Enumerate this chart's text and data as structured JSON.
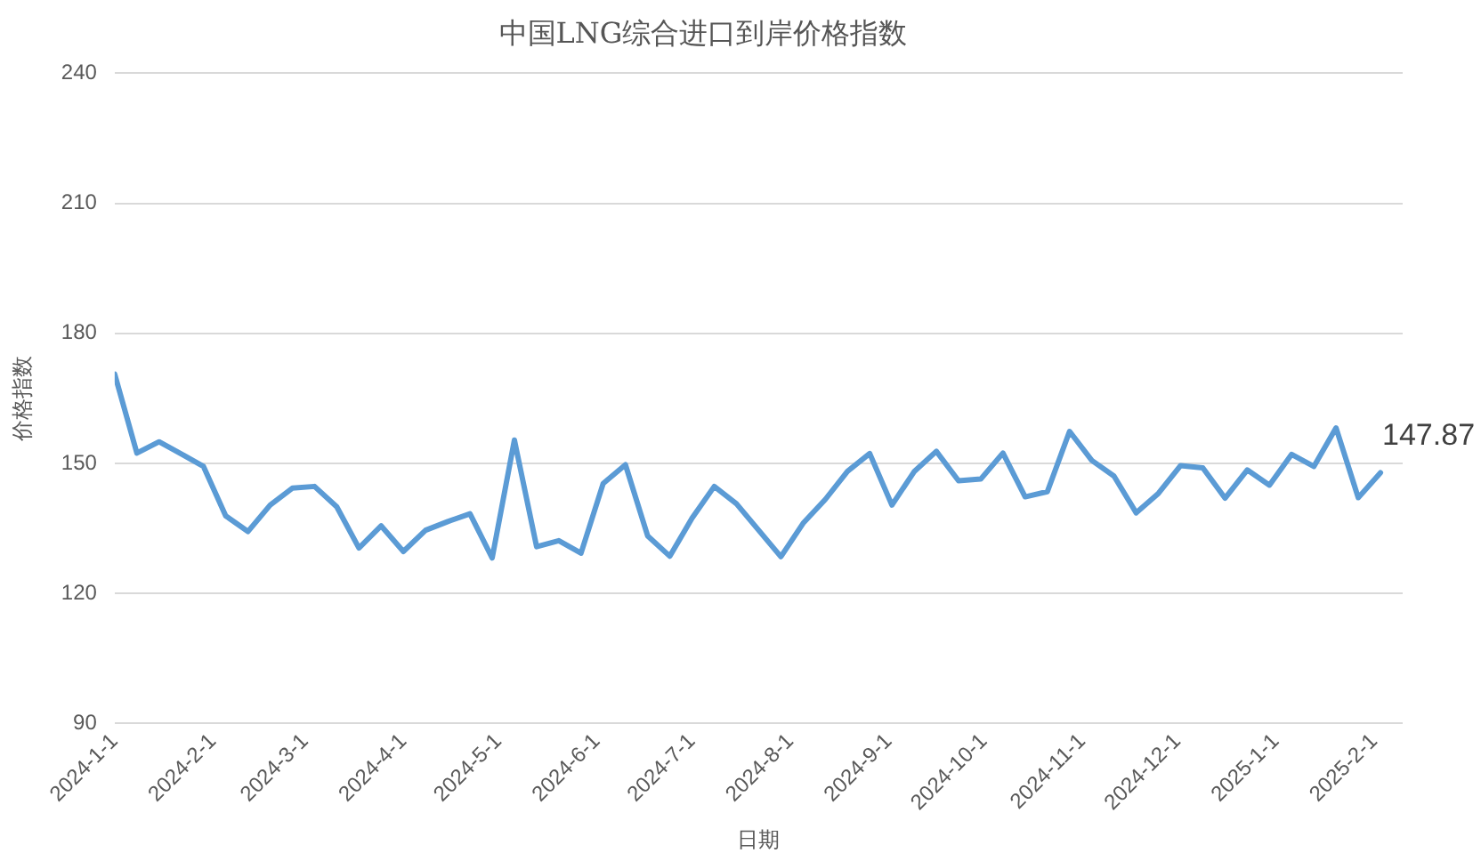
{
  "chart_data": {
    "type": "line",
    "title": "中国LNG综合进口到岸价格指数",
    "xlabel": "日期",
    "ylabel": "价格指数",
    "x": [
      "2024-01-01",
      "2024-01-08",
      "2024-01-15",
      "2024-01-22",
      "2024-01-29",
      "2024-02-05",
      "2024-02-12",
      "2024-02-19",
      "2024-02-26",
      "2024-03-04",
      "2024-03-11",
      "2024-03-18",
      "2024-03-25",
      "2024-04-01",
      "2024-04-08",
      "2024-04-15",
      "2024-04-22",
      "2024-04-29",
      "2024-05-06",
      "2024-05-13",
      "2024-05-20",
      "2024-05-27",
      "2024-06-03",
      "2024-06-10",
      "2024-06-17",
      "2024-06-24",
      "2024-07-01",
      "2024-07-08",
      "2024-07-15",
      "2024-07-22",
      "2024-07-29",
      "2024-08-05",
      "2024-08-12",
      "2024-08-19",
      "2024-08-26",
      "2024-09-02",
      "2024-09-09",
      "2024-09-16",
      "2024-09-23",
      "2024-09-30",
      "2024-10-07",
      "2024-10-14",
      "2024-10-21",
      "2024-10-28",
      "2024-11-04",
      "2024-11-11",
      "2024-11-18",
      "2024-11-25",
      "2024-12-02",
      "2024-12-09",
      "2024-12-16",
      "2024-12-23",
      "2024-12-30",
      "2025-01-06",
      "2025-01-13",
      "2025-01-20",
      "2025-01-27",
      "2025-02-03"
    ],
    "series": [
      {
        "color": "#5b9bd5",
        "values": [
          170.6,
          152.4,
          155,
          152.2,
          149.3,
          137.9,
          134.3,
          140.4,
          144.3,
          144.7,
          140,
          130.5,
          135.6,
          129.7,
          134.6,
          136.6,
          138.4,
          128.2,
          155.4,
          130.8,
          132.2,
          129.3,
          145.4,
          149.7,
          133.3,
          128.6,
          137.4,
          144.7,
          140.7,
          134.6,
          128.5,
          136.2,
          141.7,
          148.2,
          152.3,
          140.4,
          148.1,
          152.8,
          146,
          146.4,
          152.4,
          142.3,
          143.5,
          157.4,
          150.7,
          147.1,
          138.6,
          143.1,
          149.5,
          149,
          142,
          148.5,
          145,
          152.1,
          149.3,
          158.2,
          142.1,
          147.87
        ]
      }
    ],
    "xlim": [
      "2024-01-01",
      "2025-02-10"
    ],
    "xticks": [
      {
        "value": "2024-01-01",
        "label": "2024-1-1"
      },
      {
        "value": "2024-02-01",
        "label": "2024-2-1"
      },
      {
        "value": "2024-03-01",
        "label": "2024-3-1"
      },
      {
        "value": "2024-04-01",
        "label": "2024-4-1"
      },
      {
        "value": "2024-05-01",
        "label": "2024-5-1"
      },
      {
        "value": "2024-06-01",
        "label": "2024-6-1"
      },
      {
        "value": "2024-07-01",
        "label": "2024-7-1"
      },
      {
        "value": "2024-08-01",
        "label": "2024-8-1"
      },
      {
        "value": "2024-09-01",
        "label": "2024-9-1"
      },
      {
        "value": "2024-10-01",
        "label": "2024-10-1"
      },
      {
        "value": "2024-11-01",
        "label": "2024-11-1"
      },
      {
        "value": "2024-12-01",
        "label": "2024-12-1"
      },
      {
        "value": "2025-01-01",
        "label": "2025-1-1"
      },
      {
        "value": "2025-02-01",
        "label": "2025-2-1"
      }
    ],
    "ylim": [
      90,
      240
    ],
    "yticks": [
      90,
      120,
      150,
      180,
      210,
      240
    ],
    "grid": "y",
    "legend": false,
    "marker": "none",
    "line_style": "solid",
    "annotations": [
      {
        "text": "147.87",
        "x": "2025-02-03",
        "y": 147.87
      }
    ]
  }
}
